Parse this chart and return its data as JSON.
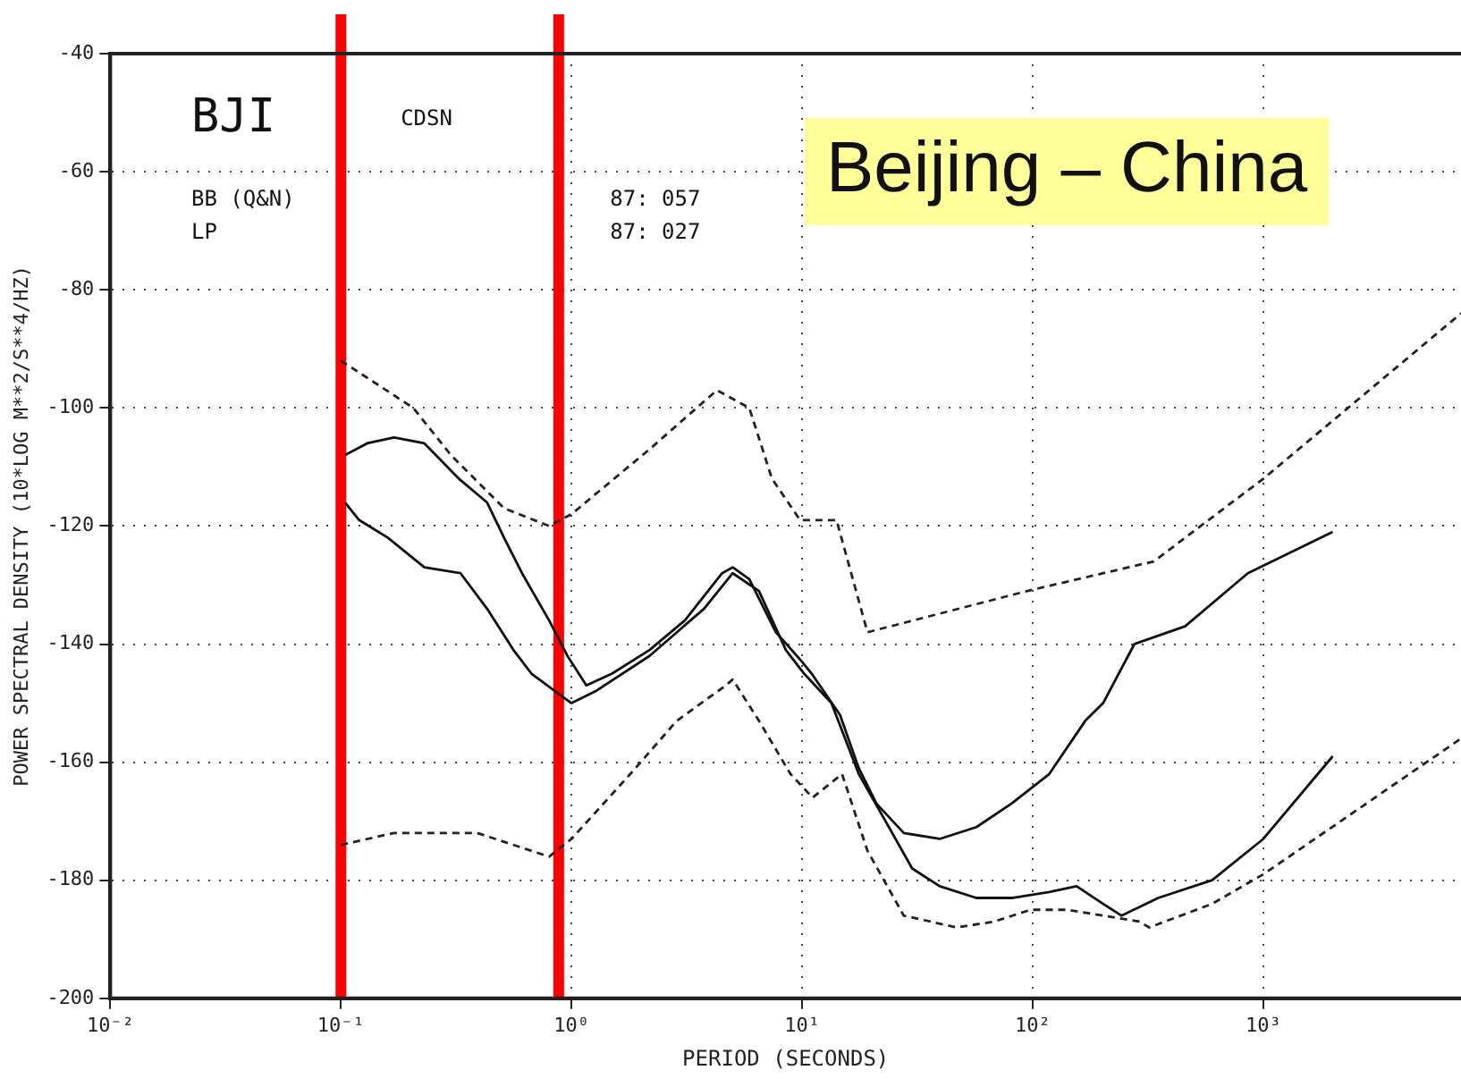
{
  "chart_data": {
    "type": "line",
    "xlabel": "PERIOD (SECONDS)",
    "ylabel": "POWER SPECTRAL DENSITY (10*LOG M**2/S**4/HZ)",
    "log": "x",
    "xlim": [
      0.01,
      7200
    ],
    "ylim": [
      -200,
      -40
    ],
    "xticks": [
      {
        "value": 0.01,
        "label": "10⁻²"
      },
      {
        "value": 0.1,
        "label": "10⁻¹"
      },
      {
        "value": 1,
        "label": "10⁰"
      },
      {
        "value": 10,
        "label": "10¹"
      },
      {
        "value": 100,
        "label": "10²"
      },
      {
        "value": 1000,
        "label": "10³"
      }
    ],
    "yticks": [
      -200,
      -180,
      -160,
      -140,
      -120,
      -100,
      -80,
      -60,
      -40
    ],
    "grid": true,
    "legend": false,
    "marker": "none",
    "annotations": [
      "BJI",
      "CDSN",
      "BB (Q&N)",
      "LP",
      "87: 057",
      "87: 027",
      "Beijing – China"
    ],
    "ref_lines": [
      {
        "axis": "x",
        "value": 0.1,
        "color": "#ff0000",
        "line_style": "solid"
      },
      {
        "axis": "x",
        "value": 0.88,
        "color": "#ff0000",
        "line_style": "solid"
      }
    ],
    "series": [
      {
        "color": "#222222",
        "line_style": "dashed",
        "x": [
          0.1,
          0.206,
          0.3,
          0.51,
          0.8,
          1,
          2.18,
          4.27,
          5.9,
          7.4,
          9.8,
          14.1,
          19.2,
          95,
          335,
          1000,
          7200
        ],
        "values": [
          -92,
          -100,
          -108,
          -117,
          -120,
          -118,
          -107,
          -97,
          -100,
          -112,
          -119,
          -119,
          -138,
          -131,
          -126,
          -112,
          -84
        ]
      },
      {
        "color": "#222222",
        "line_style": "dashed",
        "x": [
          0.1,
          0.17,
          0.39,
          0.8,
          1,
          1.8,
          2.86,
          4.67,
          5,
          6.5,
          8.9,
          11.1,
          14.9,
          19.2,
          27.6,
          47,
          68,
          98,
          141,
          290,
          320,
          600,
          1000,
          7200
        ],
        "values": [
          -174,
          -172,
          -172,
          -176,
          -173,
          -162,
          -153,
          -147,
          -146,
          -153,
          -162,
          -166,
          -162,
          -175,
          -186,
          -188,
          -187,
          -185,
          -185,
          -187,
          -188,
          -184,
          -179,
          -156
        ]
      },
      {
        "color": "#111111",
        "line_style": "solid",
        "x": [
          0.104,
          0.13,
          0.17,
          0.23,
          0.325,
          0.43,
          0.51,
          0.61,
          0.8,
          0.96,
          1.16,
          1.5,
          2.18,
          3.1,
          4.5,
          5,
          5.9,
          7.7,
          10,
          11,
          14.6,
          17.6,
          21,
          27.6,
          39.5,
          57,
          81,
          118,
          169,
          202,
          276,
          458,
          857,
          2000
        ],
        "values": [
          -108,
          -106,
          -105,
          -106,
          -112,
          -116,
          -122,
          -128,
          -136,
          -142,
          -147,
          -145,
          -141,
          -136,
          -128,
          -127,
          -129,
          -138,
          -143,
          -145,
          -152,
          -161,
          -167,
          -172,
          -173,
          -171,
          -167,
          -162,
          -153,
          -150,
          -140,
          -137,
          -128,
          -121
        ]
      },
      {
        "color": "#111111",
        "line_style": "solid",
        "x": [
          0.104,
          0.12,
          0.16,
          0.23,
          0.33,
          0.43,
          0.56,
          0.67,
          0.85,
          1,
          1.27,
          2.18,
          3.76,
          5,
          6.5,
          8.5,
          10.2,
          13.4,
          17.6,
          23,
          30,
          39.5,
          57,
          81,
          118,
          155,
          202,
          243,
          350,
          600,
          1000,
          2000
        ],
        "values": [
          -116,
          -119,
          -122,
          -127,
          -128,
          -134,
          -141,
          -145,
          -148,
          -150,
          -148,
          -142,
          -134,
          -128,
          -131,
          -141,
          -145,
          -150,
          -162,
          -170,
          -178,
          -181,
          -183,
          -183,
          -182,
          -181,
          -184,
          -186,
          -183,
          -180,
          -173,
          -159
        ]
      }
    ]
  }
}
